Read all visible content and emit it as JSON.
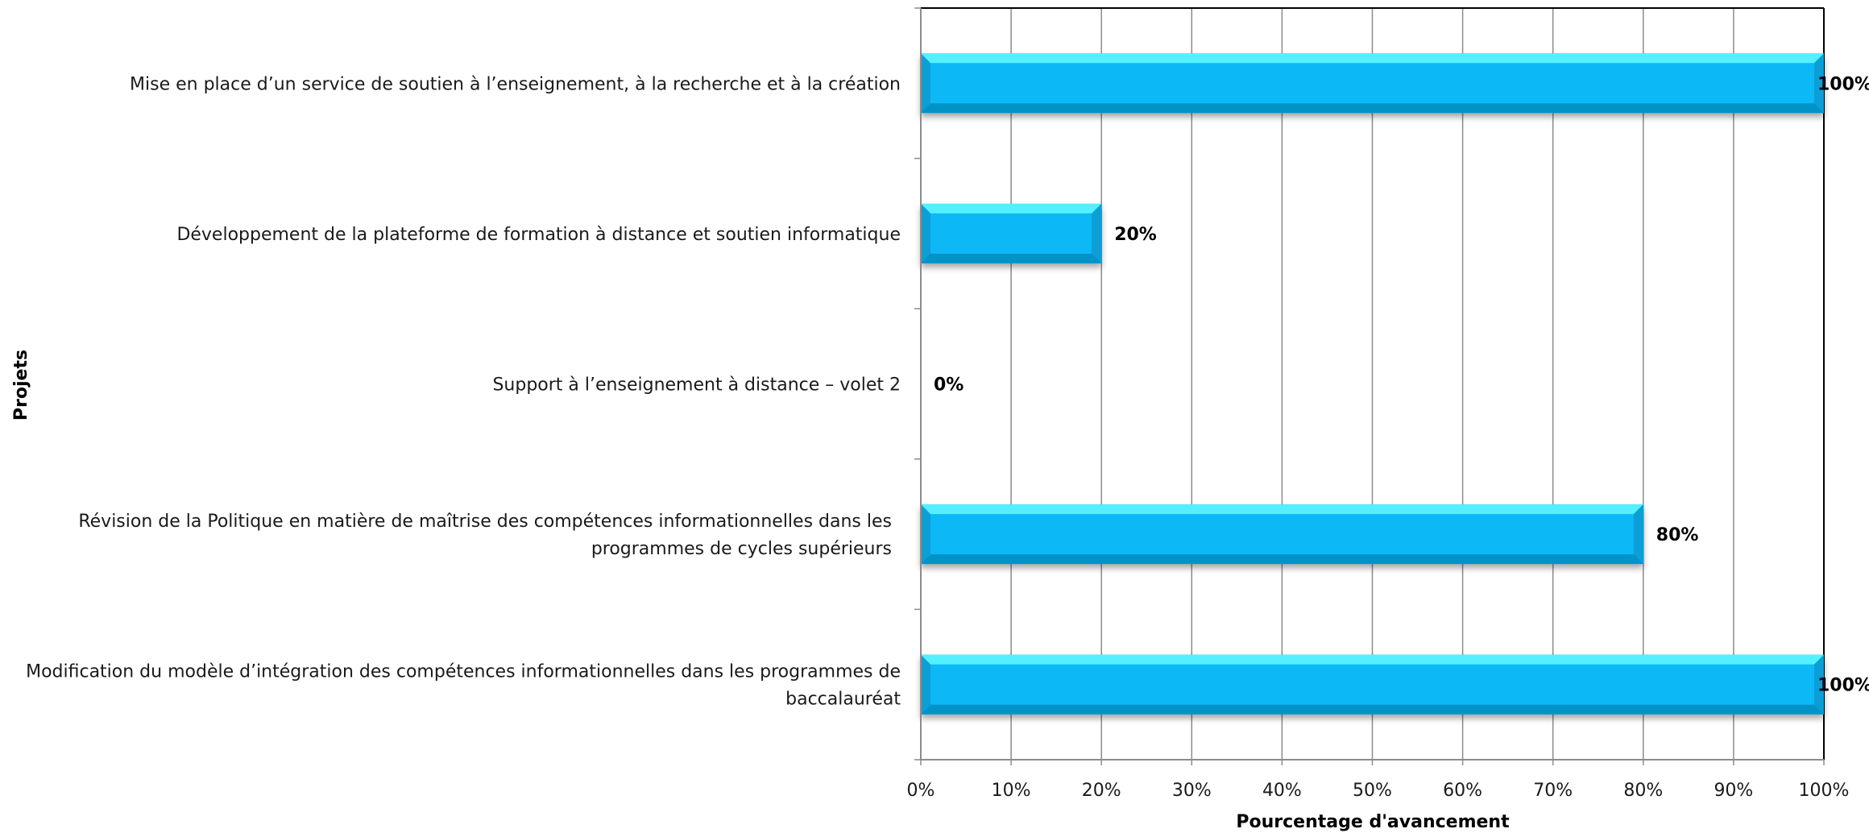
{
  "chart_data": {
    "type": "bar",
    "orientation": "horizontal",
    "categories": [
      "Mise en place d’un service de soutien à l’enseignement, à la recherche et à la création",
      "Développement de la plateforme de formation à distance et soutien informatique",
      "Support à l’enseignement à distance – volet 2",
      "Révision de la Politique en matière de maîtrise des compétences informationnelles dans les programmes de cycles supérieurs",
      "Modification du modèle d’intégration des compétences informationnelles dans les programmes de baccalauréat"
    ],
    "category_lines": [
      [
        "Mise en place d’un service de soutien à l’enseignement, à la recherche et à la création"
      ],
      [
        "Développement de la plateforme de formation à distance et soutien informatique"
      ],
      [
        "Support à l’enseignement à distance – volet 2"
      ],
      [
        "Révision de la Politique en matière de maîtrise des compétences informationnelles dans les",
        "programmes de cycles supérieurs"
      ],
      [
        "Modification du modèle d’intégration des compétences informationnelles dans les programmes de",
        "baccalauréat"
      ]
    ],
    "values": [
      100,
      20,
      0,
      80,
      100
    ],
    "data_labels": [
      "100%",
      "20%",
      "0%",
      "80%",
      "100%"
    ],
    "xlim": [
      0,
      100
    ],
    "x_ticks": [
      "0%",
      "10%",
      "20%",
      "30%",
      "40%",
      "50%",
      "60%",
      "70%",
      "80%",
      "90%",
      "100%"
    ],
    "xlabel": "Pourcentage d'avancement",
    "ylabel": "Projets",
    "grid": "vertical",
    "legend": "none",
    "colors": {
      "bar_front": "#0ab8f6",
      "bar_top": "#55f0ff",
      "bar_side": "#079ed6",
      "bar_bottom": "#0593c8",
      "grid": "#8c8c8c",
      "axis": "#000000"
    }
  }
}
